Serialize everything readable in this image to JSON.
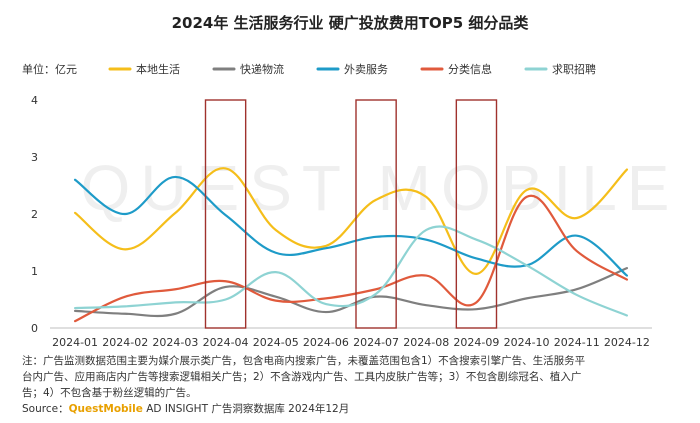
{
  "chart_data": {
    "type": "line",
    "title": "2024年 生活服务行业 硬广投放费用TOP5 细分品类",
    "unit_label": "单位：亿元",
    "categories": [
      "2024-01",
      "2024-02",
      "2024-03",
      "2024-04",
      "2024-05",
      "2024-06",
      "2024-07",
      "2024-08",
      "2024-09",
      "2024-10",
      "2024-11",
      "2024-12"
    ],
    "ylim": [
      0,
      4
    ],
    "yticks": [
      0,
      1,
      2,
      3,
      4
    ],
    "grid": false,
    "legend_position": "top",
    "series": [
      {
        "name": "本地生活",
        "color": "#F5BE1A",
        "values": [
          2.02,
          1.38,
          2.02,
          2.8,
          1.72,
          1.44,
          2.25,
          2.3,
          0.95,
          2.42,
          1.93,
          2.78
        ]
      },
      {
        "name": "快递物流",
        "color": "#7F7F7F",
        "values": [
          0.3,
          0.25,
          0.25,
          0.72,
          0.55,
          0.28,
          0.55,
          0.4,
          0.33,
          0.52,
          0.68,
          1.05
        ]
      },
      {
        "name": "外卖服务",
        "color": "#1E9BC8",
        "values": [
          2.6,
          2.0,
          2.65,
          1.98,
          1.32,
          1.4,
          1.6,
          1.55,
          1.22,
          1.1,
          1.62,
          0.92
        ]
      },
      {
        "name": "分类信息",
        "color": "#E05A3C",
        "values": [
          0.12,
          0.55,
          0.68,
          0.82,
          0.48,
          0.52,
          0.68,
          0.92,
          0.45,
          2.3,
          1.35,
          0.85
        ]
      },
      {
        "name": "求职招聘",
        "color": "#8ED3D3",
        "values": [
          0.35,
          0.38,
          0.45,
          0.5,
          0.98,
          0.42,
          0.6,
          1.72,
          1.55,
          1.1,
          0.58,
          0.22
        ]
      }
    ],
    "highlight_boxes": [
      {
        "from": "2024-04"
      },
      {
        "from": "2024-07"
      },
      {
        "from": "2024-09"
      }
    ],
    "highlight_color": "#A0322D"
  },
  "notes": [
    "注：广告监测数据范围主要为媒介展示类广告，包含电商内搜索广告，未覆盖范围包含1）不含搜索引擎广告、生活服务平",
    "台内广告、应用商店内广告等搜索逻辑相关广告；2）不含游戏内广告、工具内皮肤广告等；3）不包含剧综冠名、植入广",
    "告；4）不包含基于粉丝逻辑的广告。"
  ],
  "source": {
    "prefix": "Source：",
    "brand": "QuestMobile",
    "rest": " AD INSIGHT 广告洞察数据库 2024年12月"
  },
  "watermark": "QUEST MOBILE"
}
